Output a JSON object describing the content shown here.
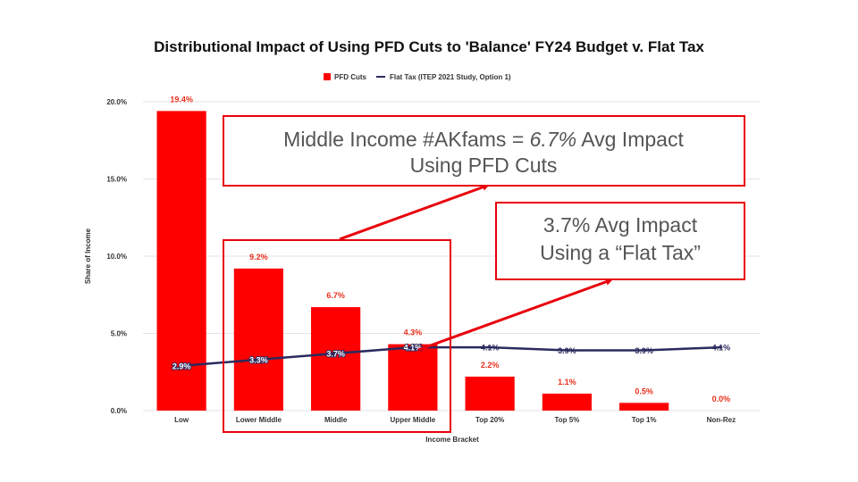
{
  "chart_data": {
    "type": "bar",
    "title": "Distributional Impact of Using PFD Cuts to 'Balance' FY24 Budget v. Flat Tax",
    "xlabel": "Income Bracket",
    "ylabel": "Share of Income",
    "ylim": [
      0,
      20
    ],
    "yticks": [
      0,
      5,
      10,
      15,
      20
    ],
    "ytick_labels": [
      "0.0%",
      "5.0%",
      "10.0%",
      "15.0%",
      "20.0%"
    ],
    "grid": true,
    "legend_position": "top-center",
    "categories": [
      "Low",
      "Lower Middle",
      "Middle",
      "Upper Middle",
      "Top 20%",
      "Top 5%",
      "Top 1%",
      "Non-Rez"
    ],
    "series": [
      {
        "name": "PFD Cuts",
        "type": "bar",
        "color": "#ff0000",
        "values": [
          19.4,
          9.2,
          6.7,
          4.3,
          2.2,
          1.1,
          0.5,
          0.0
        ],
        "labels": [
          "19.4%",
          "9.2%",
          "6.7%",
          "4.3%",
          "2.2%",
          "1.1%",
          "0.5%",
          "0.0%"
        ]
      },
      {
        "name": "Flat Tax (ITEP 2021 Study, Option 1)",
        "type": "line",
        "color": "#2b2a5e",
        "values": [
          2.9,
          3.3,
          3.7,
          4.1,
          4.1,
          3.9,
          3.9,
          4.1
        ],
        "labels": [
          "2.9%",
          "3.3%",
          "3.7%",
          "4.1%",
          "4.1%",
          "3.9%",
          "3.9%",
          "4.1%"
        ]
      }
    ],
    "annotations": {
      "middle_income": {
        "line1_prefix": "Middle Income #AKfams = ",
        "line1_emph": "6.7%",
        "line1_suffix": " Avg Impact",
        "line2": "Using PFD Cuts"
      },
      "flat_tax": {
        "line1": "3.7% Avg Impact",
        "line2": "Using a “Flat Tax”"
      }
    }
  }
}
